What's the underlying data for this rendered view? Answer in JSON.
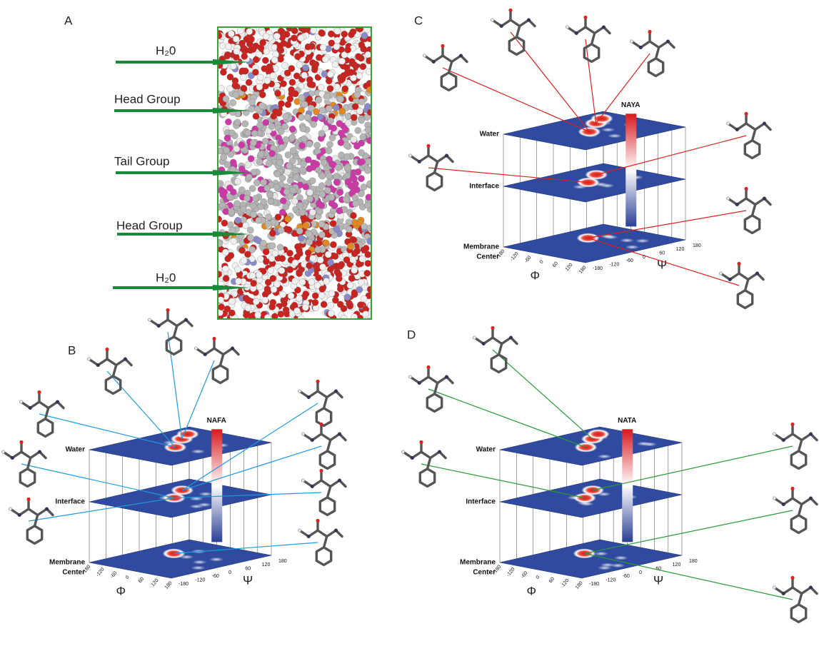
{
  "panel_a": {
    "label": "A",
    "annotations": [
      "H₂0",
      "Head Group",
      "Tail Group",
      "Head Group",
      "H₂0"
    ]
  },
  "panels": [
    {
      "label": "B",
      "colorbar_title": "NAFA",
      "layers": [
        [
          "Water"
        ],
        [
          "Interface"
        ],
        [
          "Membrane",
          "Center"
        ]
      ],
      "x_axis": "Φ",
      "y_axis": "Ψ",
      "x_ticks": [
        -180,
        -120,
        -60,
        0,
        60,
        120,
        180
      ],
      "y_ticks": [
        -180,
        -120,
        -60,
        0,
        60,
        120,
        180
      ]
    },
    {
      "label": "C",
      "colorbar_title": "NAYA",
      "layers": [
        [
          "Water"
        ],
        [
          "Interface"
        ],
        [
          "Membrane",
          "Center"
        ]
      ],
      "x_axis": "Φ",
      "y_axis": "Ψ",
      "x_ticks": [
        -180,
        -120,
        -60,
        0,
        60,
        120,
        180
      ],
      "y_ticks": [
        -180,
        -120,
        -60,
        0,
        60,
        120,
        180
      ]
    },
    {
      "label": "D",
      "colorbar_title": "NATA",
      "layers": [
        [
          "Water"
        ],
        [
          "Interface"
        ],
        [
          "Membrane",
          "Center"
        ]
      ],
      "x_axis": "Φ",
      "y_axis": "Ψ",
      "x_ticks": [
        -180,
        -120,
        -60,
        0,
        60,
        120,
        180
      ],
      "y_ticks": [
        -180,
        -120,
        -60,
        0,
        60,
        120,
        180
      ]
    }
  ]
}
